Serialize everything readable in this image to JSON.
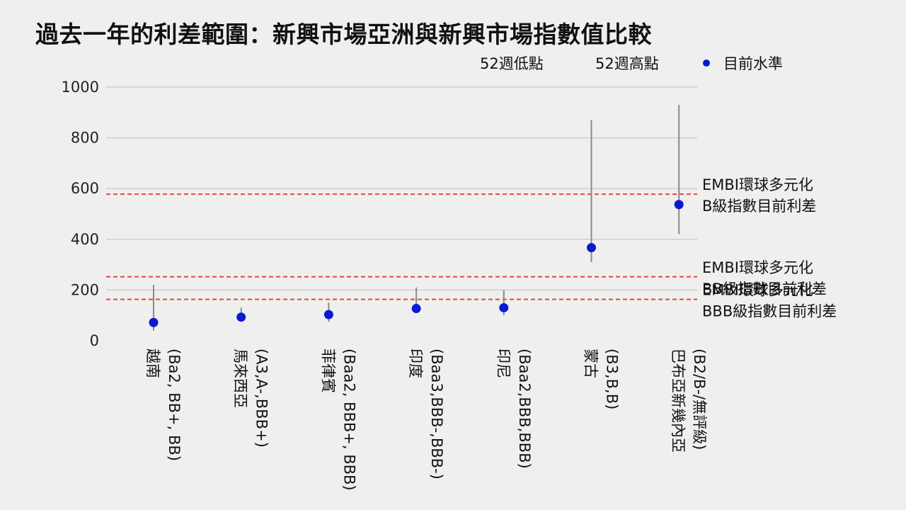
{
  "title": "過去一年的利差範圍：新興市場亞洲與新興市場指數值比較",
  "legend": {
    "low_label": "52週低點",
    "high_label": "52週高點",
    "current_label": "目前水準",
    "current_color": "#0a1ad0"
  },
  "colors": {
    "background": "#efefef",
    "grid": "#cfcfcf",
    "range_line": "#8a8a8a",
    "point": "#0a1ad0",
    "reference": "#e8473a"
  },
  "chart_data": {
    "type": "scatter",
    "title": "過去一年的利差範圍：新興市場亞洲與新興市場指數值比較",
    "xlabel": "",
    "ylabel": "",
    "ylim": [
      0,
      1000
    ],
    "yticks": [
      0,
      200,
      400,
      600,
      800,
      1000
    ],
    "grid": true,
    "legend_position": "top-right",
    "categories": [
      {
        "name": "越南",
        "rating": "(Ba2, BB+, BB)"
      },
      {
        "name": "馬來西亞",
        "rating": "(A3,A-,BBB+)"
      },
      {
        "name": "菲律賓",
        "rating": "(Baa2, BBB+, BBB)"
      },
      {
        "name": "印度",
        "rating": "(Baa3,BBB-,BBB-)"
      },
      {
        "name": "印尼",
        "rating": "(Baa2,BBB,BBB)"
      },
      {
        "name": "蒙古",
        "rating": "(B3,B,B)"
      },
      {
        "name": "巴布亞新幾內亞",
        "rating": "(B2/B-/無評級)"
      }
    ],
    "series": [
      {
        "name": "52週低點",
        "values": [
          40,
          85,
          75,
          110,
          100,
          310,
          420
        ]
      },
      {
        "name": "52週高點",
        "values": [
          220,
          130,
          150,
          210,
          200,
          870,
          930
        ]
      },
      {
        "name": "目前水準",
        "values": [
          72,
          93,
          103,
          127,
          130,
          367,
          537
        ]
      }
    ],
    "reference_lines": [
      {
        "value": 578,
        "label": [
          "EMBI環球多元化",
          "B級指數目前利差"
        ]
      },
      {
        "value": 252,
        "label": [
          "EMBI環球多元化",
          "BB級指數目前利差"
        ]
      },
      {
        "value": 163,
        "label": [
          "EMBI環球多元化",
          "BBB級指數目前利差"
        ]
      }
    ]
  }
}
